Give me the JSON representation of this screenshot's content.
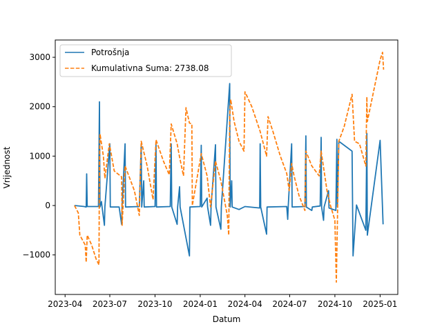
{
  "chart_data": {
    "type": "line",
    "xlabel": "Datum",
    "ylabel": "Vrijednost",
    "x_tick_labels": [
      "2023-04",
      "2023-07",
      "2023-10",
      "2024-01",
      "2024-04",
      "2024-07",
      "2024-10",
      "2025-01"
    ],
    "x_ticks": [
      "2023-04-01",
      "2023-07-01",
      "2023-10-01",
      "2024-01-01",
      "2024-04-01",
      "2024-07-01",
      "2024-10-01",
      "2025-01-01"
    ],
    "xlim": [
      "2023-03-12",
      "2025-02-06"
    ],
    "y_ticks": [
      -1000,
      0,
      1000,
      2000,
      3000
    ],
    "ylim": [
      -1800,
      3350
    ],
    "legend_position": "upper-left",
    "colors": {
      "potrosnja": "#1f77b4",
      "kumulativna": "#ff7f0e"
    },
    "series": [
      {
        "name": "Potrošnja",
        "style": "solid",
        "points": [
          [
            "2023-04-20",
            0
          ],
          [
            "2023-05-10",
            -20
          ],
          [
            "2023-05-14",
            -30
          ],
          [
            "2023-05-15",
            640
          ],
          [
            "2023-05-16",
            -20
          ],
          [
            "2023-06-08",
            -20
          ],
          [
            "2023-06-10",
            2100
          ],
          [
            "2023-06-11",
            -30
          ],
          [
            "2023-06-14",
            80
          ],
          [
            "2023-06-15",
            -10
          ],
          [
            "2023-06-20",
            -400
          ],
          [
            "2023-06-21",
            -20
          ],
          [
            "2023-07-01",
            1250
          ],
          [
            "2023-07-02",
            -30
          ],
          [
            "2023-07-20",
            -30
          ],
          [
            "2023-07-25",
            -380
          ],
          [
            "2023-07-26",
            -20
          ],
          [
            "2023-08-01",
            1250
          ],
          [
            "2023-08-02",
            -30
          ],
          [
            "2023-08-30",
            -20
          ],
          [
            "2023-09-03",
            1250
          ],
          [
            "2023-09-04",
            -30
          ],
          [
            "2023-09-08",
            500
          ],
          [
            "2023-09-09",
            -30
          ],
          [
            "2023-10-01",
            -20
          ],
          [
            "2023-10-03",
            1250
          ],
          [
            "2023-10-04",
            -30
          ],
          [
            "2023-11-01",
            -20
          ],
          [
            "2023-11-03",
            1250
          ],
          [
            "2023-11-04",
            -30
          ],
          [
            "2023-11-15",
            -380
          ],
          [
            "2023-11-16",
            -30
          ],
          [
            "2023-11-20",
            380
          ],
          [
            "2023-11-21",
            -30
          ],
          [
            "2023-12-10",
            -1020
          ],
          [
            "2023-12-11",
            -30
          ],
          [
            "2024-01-01",
            -20
          ],
          [
            "2024-01-03",
            1220
          ],
          [
            "2024-01-04",
            -30
          ],
          [
            "2024-01-15",
            150
          ],
          [
            "2024-01-16",
            -30
          ],
          [
            "2024-01-22",
            -400
          ],
          [
            "2024-01-23",
            -30
          ],
          [
            "2024-02-01",
            1230
          ],
          [
            "2024-02-02",
            -30
          ],
          [
            "2024-02-12",
            -480
          ],
          [
            "2024-02-13",
            -30
          ],
          [
            "2024-03-01",
            2470
          ],
          [
            "2024-03-02",
            -30
          ],
          [
            "2024-03-05",
            500
          ],
          [
            "2024-03-06",
            -30
          ],
          [
            "2024-03-20",
            -80
          ],
          [
            "2024-04-01",
            -20
          ],
          [
            "2024-05-01",
            -50
          ],
          [
            "2024-05-02",
            1250
          ],
          [
            "2024-05-03",
            -30
          ],
          [
            "2024-05-15",
            -580
          ],
          [
            "2024-05-16",
            -30
          ],
          [
            "2024-06-25",
            -20
          ],
          [
            "2024-06-27",
            -280
          ],
          [
            "2024-06-28",
            -30
          ],
          [
            "2024-07-05",
            1250
          ],
          [
            "2024-07-06",
            -30
          ],
          [
            "2024-08-01",
            -20
          ],
          [
            "2024-08-03",
            1410
          ],
          [
            "2024-08-04",
            -30
          ],
          [
            "2024-08-15",
            -100
          ],
          [
            "2024-08-16",
            -30
          ],
          [
            "2024-09-01",
            -10
          ],
          [
            "2024-09-03",
            1380
          ],
          [
            "2024-09-04",
            -30
          ],
          [
            "2024-09-08",
            -300
          ],
          [
            "2024-09-09",
            -30
          ],
          [
            "2024-09-18",
            300
          ],
          [
            "2024-09-19",
            -50
          ],
          [
            "2024-10-03",
            -100
          ],
          [
            "2024-10-05",
            1340
          ],
          [
            "2024-10-06",
            -30
          ],
          [
            "2024-10-09",
            1300
          ],
          [
            "2024-11-05",
            1100
          ],
          [
            "2024-11-07",
            -1020
          ],
          [
            "2024-11-14",
            10
          ],
          [
            "2024-12-03",
            -500
          ],
          [
            "2024-12-05",
            1460
          ],
          [
            "2024-12-06",
            -600
          ],
          [
            "2025-01-01",
            1320
          ],
          [
            "2025-01-07",
            -380
          ]
        ]
      },
      {
        "name": "Kumulativna Suma: 2738.08",
        "style": "dashed",
        "points": [
          [
            "2023-04-20",
            0
          ],
          [
            "2023-04-28",
            -150
          ],
          [
            "2023-05-01",
            -600
          ],
          [
            "2023-05-12",
            -800
          ],
          [
            "2023-05-14",
            -1150
          ],
          [
            "2023-05-16",
            -600
          ],
          [
            "2023-05-25",
            -800
          ],
          [
            "2023-06-03",
            -1080
          ],
          [
            "2023-06-09",
            -1200
          ],
          [
            "2023-06-10",
            850
          ],
          [
            "2023-06-11",
            1450
          ],
          [
            "2023-06-18",
            1000
          ],
          [
            "2023-06-21",
            550
          ],
          [
            "2023-06-30",
            1250
          ],
          [
            "2023-07-01",
            1200
          ],
          [
            "2023-07-10",
            700
          ],
          [
            "2023-07-25",
            580
          ],
          [
            "2023-07-26",
            -400
          ],
          [
            "2023-08-01",
            800
          ],
          [
            "2023-08-20",
            300
          ],
          [
            "2023-08-30",
            -200
          ],
          [
            "2023-09-03",
            1300
          ],
          [
            "2023-09-15",
            800
          ],
          [
            "2023-09-27",
            120
          ],
          [
            "2023-10-03",
            1330
          ],
          [
            "2023-10-18",
            900
          ],
          [
            "2023-10-30",
            620
          ],
          [
            "2023-11-03",
            1650
          ],
          [
            "2023-11-15",
            1250
          ],
          [
            "2023-11-20",
            980
          ],
          [
            "2023-11-28",
            600
          ],
          [
            "2023-12-03",
            1980
          ],
          [
            "2023-12-10",
            1670
          ],
          [
            "2023-12-15",
            1650
          ],
          [
            "2023-12-16",
            0
          ],
          [
            "2024-01-03",
            1050
          ],
          [
            "2024-01-15",
            600
          ],
          [
            "2024-01-22",
            -30
          ],
          [
            "2024-02-01",
            900
          ],
          [
            "2024-02-12",
            500
          ],
          [
            "2024-02-25",
            -200
          ],
          [
            "2024-02-28",
            -600
          ],
          [
            "2024-03-01",
            1800
          ],
          [
            "2024-03-03",
            2150
          ],
          [
            "2024-03-10",
            1700
          ],
          [
            "2024-03-20",
            1300
          ],
          [
            "2024-03-30",
            1100
          ],
          [
            "2024-04-01",
            2300
          ],
          [
            "2024-04-15",
            2000
          ],
          [
            "2024-05-02",
            1500
          ],
          [
            "2024-05-15",
            1000
          ],
          [
            "2024-05-18",
            1800
          ],
          [
            "2024-05-28",
            1500
          ],
          [
            "2024-06-12",
            1000
          ],
          [
            "2024-06-25",
            650
          ],
          [
            "2024-06-30",
            300
          ],
          [
            "2024-07-05",
            850
          ],
          [
            "2024-07-10",
            600
          ],
          [
            "2024-07-20",
            200
          ],
          [
            "2024-08-01",
            -100
          ],
          [
            "2024-08-03",
            1100
          ],
          [
            "2024-08-15",
            800
          ],
          [
            "2024-08-30",
            600
          ],
          [
            "2024-09-03",
            1100
          ],
          [
            "2024-09-15",
            300
          ],
          [
            "2024-09-22",
            0
          ],
          [
            "2024-10-01",
            -300
          ],
          [
            "2024-10-04",
            -1550
          ],
          [
            "2024-10-09",
            1300
          ],
          [
            "2024-10-20",
            1600
          ],
          [
            "2024-11-05",
            2250
          ],
          [
            "2024-11-10",
            1300
          ],
          [
            "2024-11-20",
            1250
          ],
          [
            "2024-12-03",
            800
          ],
          [
            "2024-12-05",
            2200
          ],
          [
            "2024-12-06",
            1700
          ],
          [
            "2025-01-01",
            2950
          ],
          [
            "2025-01-06",
            3100
          ],
          [
            "2025-01-08",
            2750
          ]
        ]
      }
    ]
  }
}
